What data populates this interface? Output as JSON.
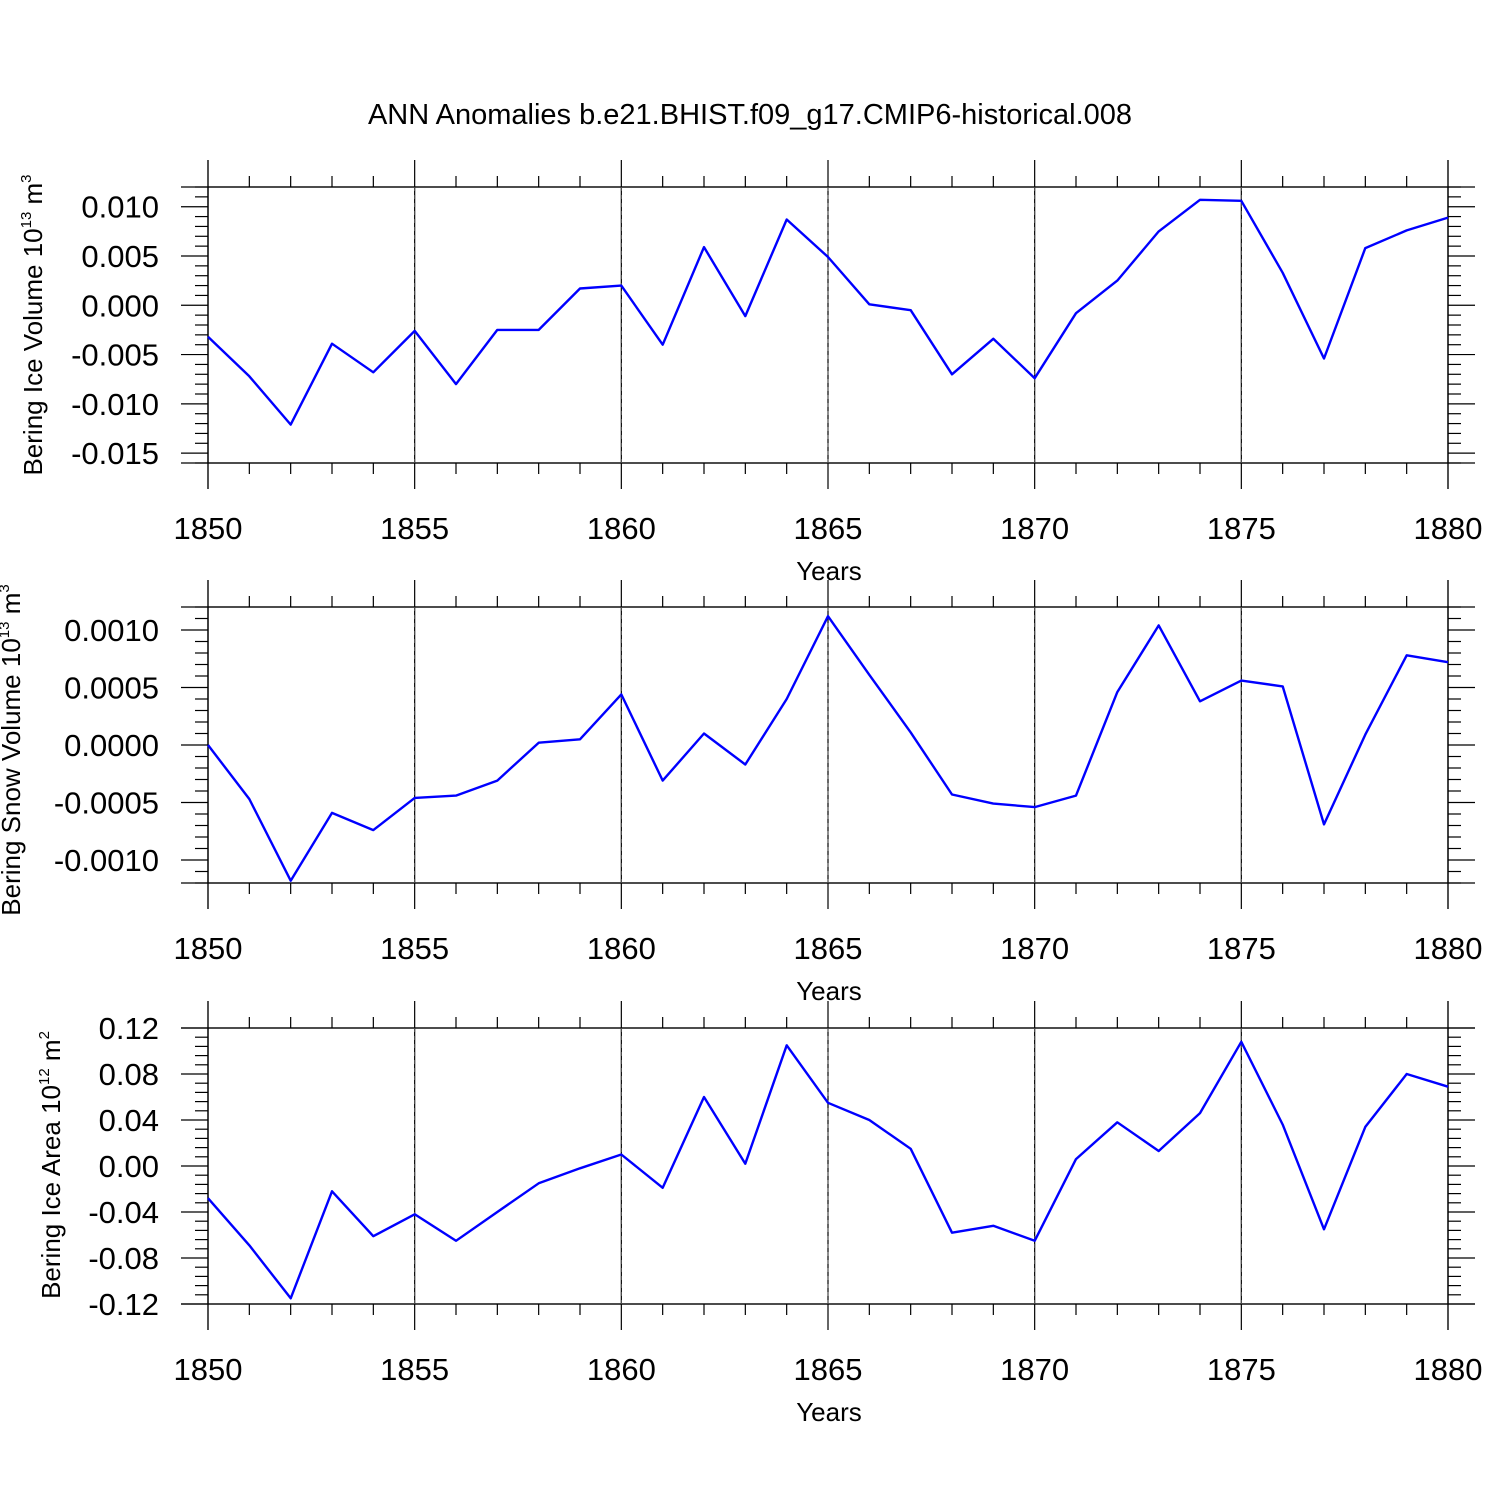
{
  "title": "ANN Anomalies b.e21.BHIST.f09_g17.CMIP6-historical.008",
  "line_color": "#0000ff",
  "chart_data": [
    {
      "type": "line",
      "ylabel_main": "Bering Ice Volume 10",
      "ylabel_exp": "13",
      "ylabel_unit": " m",
      "ylabel_unit_exp": "3",
      "xlabel": "Years",
      "xlim": [
        1850,
        1880
      ],
      "ylim": [
        -0.016,
        0.012
      ],
      "x_ticks": [
        "1850",
        "1855",
        "1860",
        "1865",
        "1870",
        "1875",
        "1880"
      ],
      "y_ticks": [
        "0.010",
        "0.005",
        "0.000",
        "-0.005",
        "-0.010",
        "-0.015"
      ],
      "y_tick_values": [
        0.01,
        0.005,
        0.0,
        -0.005,
        -0.01,
        -0.015
      ],
      "grid": "vertical dashed at major x ticks",
      "x": [
        1850,
        1851,
        1852,
        1853,
        1854,
        1855,
        1856,
        1857,
        1858,
        1859,
        1860,
        1861,
        1862,
        1863,
        1864,
        1865,
        1866,
        1867,
        1868,
        1869,
        1870,
        1871,
        1872,
        1873,
        1874,
        1875,
        1876,
        1877,
        1878,
        1879,
        1880
      ],
      "values": [
        -0.0032,
        -0.0072,
        -0.0121,
        -0.0039,
        -0.0068,
        -0.0026,
        -0.008,
        -0.0025,
        -0.0025,
        0.0017,
        0.002,
        -0.004,
        0.0059,
        -0.0011,
        0.0087,
        0.0049,
        0.0001,
        -0.0005,
        -0.007,
        -0.0034,
        -0.0074,
        -0.0008,
        0.0025,
        0.0075,
        0.0107,
        0.0106,
        0.0033,
        -0.0054,
        0.0058,
        0.0076,
        0.0089
      ]
    },
    {
      "type": "line",
      "ylabel_main": "Bering Snow Volume 10",
      "ylabel_exp": "13",
      "ylabel_unit": " m",
      "ylabel_unit_exp": "3",
      "xlabel": "Years",
      "xlim": [
        1850,
        1880
      ],
      "ylim": [
        -0.0012,
        0.0012
      ],
      "x_ticks": [
        "1850",
        "1855",
        "1860",
        "1865",
        "1870",
        "1875",
        "1880"
      ],
      "y_ticks": [
        "0.0010",
        "0.0005",
        "0.0000",
        "-0.0005",
        "-0.0010"
      ],
      "y_tick_values": [
        0.001,
        0.0005,
        0.0,
        -0.0005,
        -0.001
      ],
      "grid": "vertical dashed at major x ticks",
      "x": [
        1850,
        1851,
        1852,
        1853,
        1854,
        1855,
        1856,
        1857,
        1858,
        1859,
        1860,
        1861,
        1862,
        1863,
        1864,
        1865,
        1866,
        1867,
        1868,
        1869,
        1870,
        1871,
        1872,
        1873,
        1874,
        1875,
        1876,
        1877,
        1878,
        1879,
        1880
      ],
      "values": [
        0.0,
        -0.00047,
        -0.00118,
        -0.00059,
        -0.00074,
        -0.00046,
        -0.00044,
        -0.00031,
        2e-05,
        5e-05,
        0.00044,
        -0.00031,
        0.0001,
        -0.00017,
        0.0004,
        0.00112,
        0.00061,
        0.00011,
        -0.00043,
        -0.00051,
        -0.00054,
        -0.00044,
        0.00046,
        0.00104,
        0.00038,
        0.00056,
        0.00051,
        -0.00069,
        9e-05,
        0.00078,
        0.00072
      ]
    },
    {
      "type": "line",
      "ylabel_main": "Bering Ice Area 10",
      "ylabel_exp": "12",
      "ylabel_unit": " m",
      "ylabel_unit_exp": "2",
      "xlabel": "Years",
      "xlim": [
        1850,
        1880
      ],
      "ylim": [
        -0.12,
        0.12
      ],
      "x_ticks": [
        "1850",
        "1855",
        "1860",
        "1865",
        "1870",
        "1875",
        "1880"
      ],
      "y_ticks": [
        "0.12",
        "0.08",
        "0.04",
        "0.00",
        "-0.04",
        "-0.08",
        "-0.12"
      ],
      "y_tick_values": [
        0.12,
        0.08,
        0.04,
        0.0,
        -0.04,
        -0.08,
        -0.12
      ],
      "grid": "vertical dashed at major x ticks",
      "x": [
        1850,
        1851,
        1852,
        1853,
        1854,
        1855,
        1856,
        1857,
        1858,
        1859,
        1860,
        1861,
        1862,
        1863,
        1864,
        1865,
        1866,
        1867,
        1868,
        1869,
        1870,
        1871,
        1872,
        1873,
        1874,
        1875,
        1876,
        1877,
        1878,
        1879,
        1880
      ],
      "values": [
        -0.028,
        -0.069,
        -0.115,
        -0.022,
        -0.061,
        -0.042,
        -0.065,
        -0.04,
        -0.015,
        -0.002,
        0.01,
        -0.019,
        0.06,
        0.002,
        0.105,
        0.055,
        0.04,
        0.015,
        -0.058,
        -0.052,
        -0.065,
        0.006,
        0.038,
        0.013,
        0.046,
        0.108,
        0.036,
        -0.055,
        0.034,
        0.08,
        0.069
      ]
    }
  ]
}
